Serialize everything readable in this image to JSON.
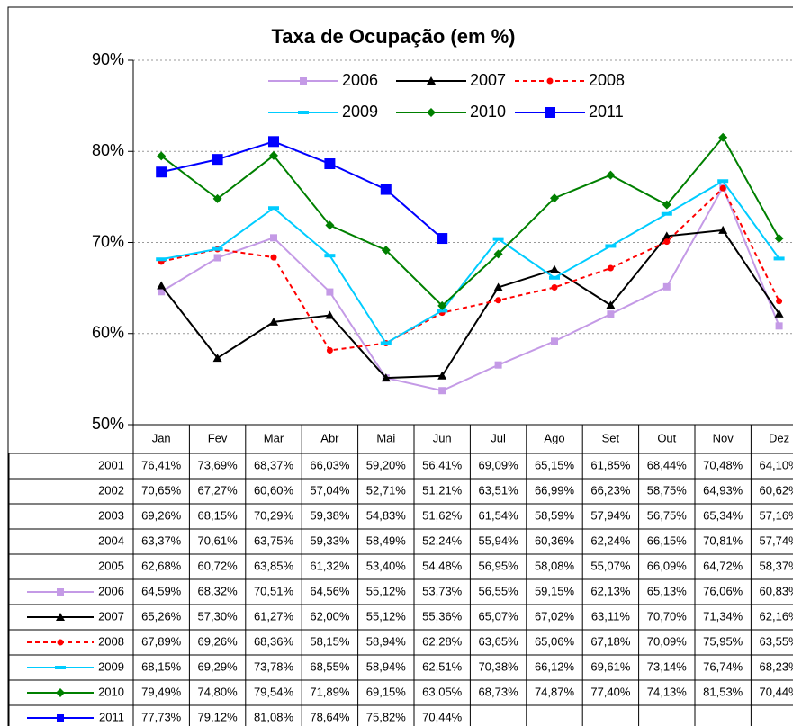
{
  "chart_data": {
    "type": "line",
    "title": "Taxa de Ocupação (em %)",
    "categories": [
      "Jan",
      "Fev",
      "Mar",
      "Abr",
      "Mai",
      "Jun",
      "Jul",
      "Ago",
      "Set",
      "Out",
      "Nov",
      "Dez"
    ],
    "ylim": [
      50,
      90
    ],
    "yticks": [
      {
        "value": 50,
        "label": "50%"
      },
      {
        "value": 60,
        "label": "60%"
      },
      {
        "value": 70,
        "label": "70%"
      },
      {
        "value": 80,
        "label": "80%"
      },
      {
        "value": 90,
        "label": "90%"
      }
    ],
    "grid": true,
    "legend": "top",
    "data_table": true,
    "series": [
      {
        "name": "2001",
        "values": [
          76.41,
          73.69,
          68.37,
          66.03,
          59.2,
          56.41,
          69.09,
          65.15,
          61.85,
          68.44,
          70.48,
          64.1
        ],
        "value_labels": [
          "76,41%",
          "73,69%",
          "68,37%",
          "66,03%",
          "59,20%",
          "56,41%",
          "69,09%",
          "65,15%",
          "61,85%",
          "68,44%",
          "70,48%",
          "64,10%"
        ]
      },
      {
        "name": "2002",
        "values": [
          70.65,
          67.27,
          60.6,
          57.04,
          52.71,
          51.21,
          63.51,
          66.99,
          66.23,
          58.75,
          64.93,
          60.62
        ],
        "value_labels": [
          "70,65%",
          "67,27%",
          "60,60%",
          "57,04%",
          "52,71%",
          "51,21%",
          "63,51%",
          "66,99%",
          "66,23%",
          "58,75%",
          "64,93%",
          "60,62%"
        ]
      },
      {
        "name": "2003",
        "values": [
          69.26,
          68.15,
          70.29,
          59.38,
          54.83,
          51.62,
          61.54,
          58.59,
          57.94,
          56.75,
          65.34,
          57.16
        ],
        "value_labels": [
          "69,26%",
          "68,15%",
          "70,29%",
          "59,38%",
          "54,83%",
          "51,62%",
          "61,54%",
          "58,59%",
          "57,94%",
          "56,75%",
          "65,34%",
          "57,16%"
        ]
      },
      {
        "name": "2004",
        "values": [
          63.37,
          70.61,
          63.75,
          59.33,
          58.49,
          52.24,
          55.94,
          60.36,
          62.24,
          66.15,
          70.81,
          57.74
        ],
        "value_labels": [
          "63,37%",
          "70,61%",
          "63,75%",
          "59,33%",
          "58,49%",
          "52,24%",
          "55,94%",
          "60,36%",
          "62,24%",
          "66,15%",
          "70,81%",
          "57,74%"
        ]
      },
      {
        "name": "2005",
        "values": [
          62.68,
          60.72,
          63.85,
          61.32,
          53.4,
          54.48,
          56.95,
          58.08,
          55.07,
          66.09,
          64.72,
          58.37
        ],
        "value_labels": [
          "62,68%",
          "60,72%",
          "63,85%",
          "61,32%",
          "53,40%",
          "54,48%",
          "56,95%",
          "58,08%",
          "55,07%",
          "66,09%",
          "64,72%",
          "58,37%"
        ]
      },
      {
        "name": "2006",
        "color": "#c49ae6",
        "marker": "square",
        "values": [
          64.59,
          68.32,
          70.51,
          64.56,
          55.12,
          53.73,
          56.55,
          59.15,
          62.13,
          65.13,
          76.06,
          60.83
        ],
        "value_labels": [
          "64,59%",
          "68,32%",
          "70,51%",
          "64,56%",
          "55,12%",
          "53,73%",
          "56,55%",
          "59,15%",
          "62,13%",
          "65,13%",
          "76,06%",
          "60,83%"
        ]
      },
      {
        "name": "2007",
        "color": "#000000",
        "marker": "triangle",
        "values": [
          65.26,
          57.3,
          61.27,
          62.0,
          55.12,
          55.36,
          65.07,
          67.02,
          63.11,
          70.7,
          71.34,
          62.16
        ],
        "value_labels": [
          "65,26%",
          "57,30%",
          "61,27%",
          "62,00%",
          "55,12%",
          "55,36%",
          "65,07%",
          "67,02%",
          "63,11%",
          "70,70%",
          "71,34%",
          "62,16%"
        ]
      },
      {
        "name": "2008",
        "color": "#ff0000",
        "marker": "circle",
        "dash": true,
        "values": [
          67.89,
          69.26,
          68.36,
          58.15,
          58.94,
          62.28,
          63.65,
          65.06,
          67.18,
          70.09,
          75.95,
          63.55
        ],
        "value_labels": [
          "67,89%",
          "69,26%",
          "68,36%",
          "58,15%",
          "58,94%",
          "62,28%",
          "63,65%",
          "65,06%",
          "67,18%",
          "70,09%",
          "75,95%",
          "63,55%"
        ]
      },
      {
        "name": "2009",
        "color": "#00ccff",
        "marker": "dash",
        "values": [
          68.15,
          69.29,
          73.78,
          68.55,
          58.94,
          62.51,
          70.38,
          66.12,
          69.61,
          73.14,
          76.74,
          68.23
        ],
        "value_labels": [
          "68,15%",
          "69,29%",
          "73,78%",
          "68,55%",
          "58,94%",
          "62,51%",
          "70,38%",
          "66,12%",
          "69,61%",
          "73,14%",
          "76,74%",
          "68,23%"
        ]
      },
      {
        "name": "2010",
        "color": "#008000",
        "marker": "diamond",
        "values": [
          79.49,
          74.8,
          79.54,
          71.89,
          69.15,
          63.05,
          68.73,
          74.87,
          77.4,
          74.13,
          81.53,
          70.44
        ],
        "value_labels": [
          "79,49%",
          "74,80%",
          "79,54%",
          "71,89%",
          "69,15%",
          "63,05%",
          "68,73%",
          "74,87%",
          "77,40%",
          "74,13%",
          "81,53%",
          "70,44%"
        ]
      },
      {
        "name": "2011",
        "color": "#0000ff",
        "marker": "square",
        "values": [
          77.73,
          79.12,
          81.08,
          78.64,
          75.82,
          70.44,
          null,
          null,
          null,
          null,
          null,
          null
        ],
        "value_labels": [
          "77,73%",
          "79,12%",
          "81,08%",
          "78,64%",
          "75,82%",
          "70,44%",
          null,
          null,
          null,
          null,
          null,
          null
        ]
      }
    ]
  }
}
